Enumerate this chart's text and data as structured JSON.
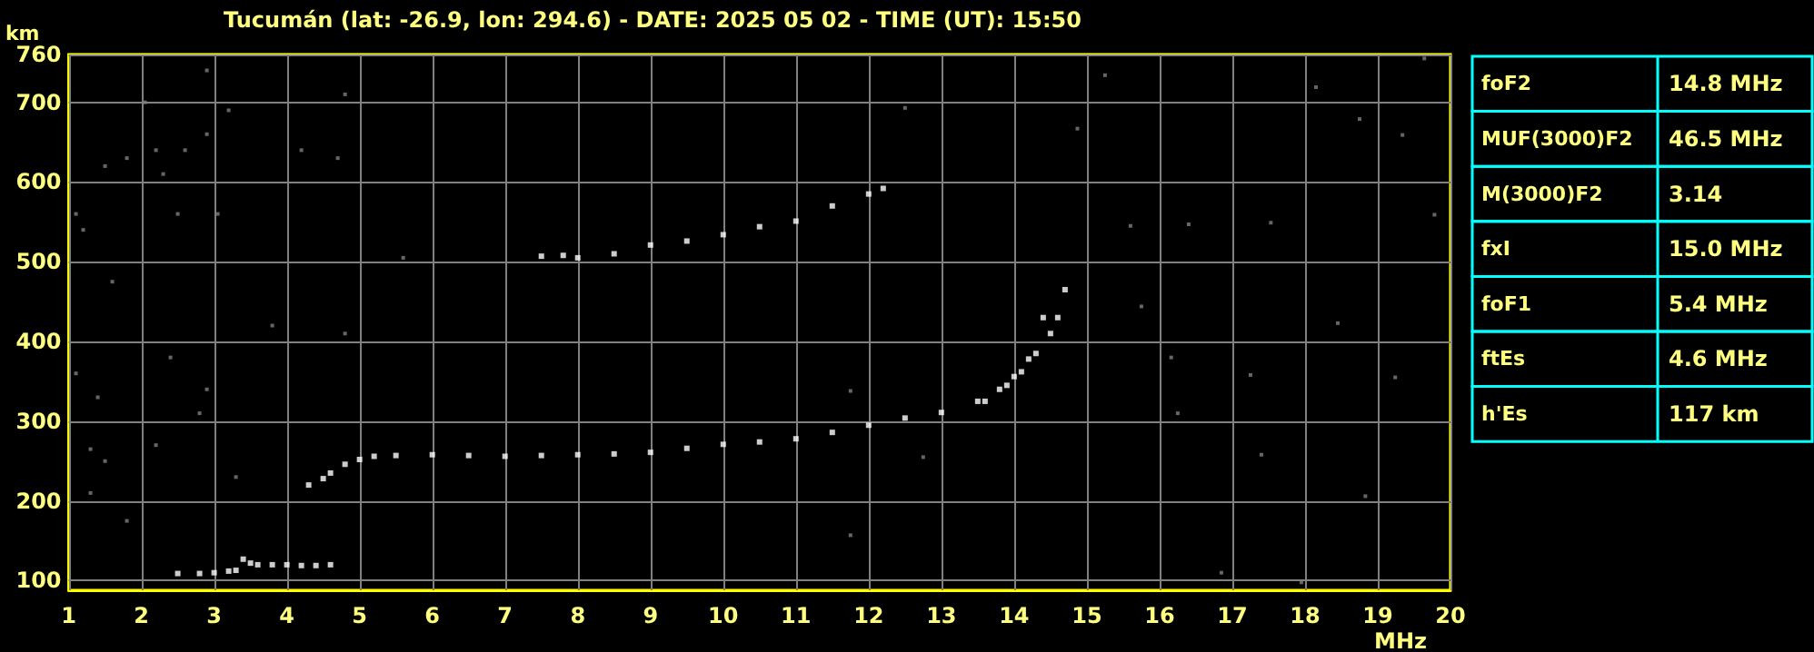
{
  "chart_data": {
    "type": "scatter",
    "title": "Tucumán (lat: -26.9, lon: 294.6) - DATE: 2025 05 02 - TIME (UT): 15:50",
    "xlabel": "MHz",
    "ylabel": "km",
    "xlim": [
      1,
      20
    ],
    "ylim": [
      88,
      760
    ],
    "xticks": [
      1,
      2,
      3,
      4,
      5,
      6,
      7,
      8,
      9,
      10,
      11,
      12,
      13,
      14,
      15,
      16,
      17,
      18,
      19,
      20
    ],
    "yticks": [
      100,
      200,
      300,
      400,
      500,
      600,
      700,
      760
    ],
    "grid": true,
    "marker": "square",
    "annotations": [
      "foF2 14.8 MHz",
      "MUF(3000)F2 46.5 MHz",
      "M(3000)F2 3.14",
      "fxI 15.0 MHz",
      "foF1 5.4 MHz",
      "ftEs 4.6 MHz",
      "h'Es 117 km"
    ],
    "series": [
      {
        "color": "#ffffff",
        "x": [
          2.5,
          2.8,
          3.0,
          3.2,
          3.3,
          3.4,
          3.5,
          3.6,
          3.8,
          4.0,
          4.2,
          4.4,
          4.6
        ],
        "values": [
          109,
          109,
          110,
          112,
          113,
          127,
          122,
          120,
          120,
          120,
          119,
          119,
          120
        ]
      },
      {
        "color": "#ffffff",
        "x": [
          4.3,
          4.5,
          4.6,
          4.8,
          5.0,
          5.2,
          5.5,
          6.0,
          6.5,
          7.0,
          7.5,
          8.0,
          8.5,
          9.0,
          9.5,
          10.0,
          10.5,
          11.0,
          11.5,
          12.0,
          12.5,
          13.0,
          13.5,
          13.8,
          14.0,
          14.2,
          14.4
        ],
        "values": [
          220,
          228,
          235,
          246,
          252,
          256,
          257,
          258,
          257,
          256,
          257,
          258,
          259,
          261,
          266,
          271,
          274,
          278,
          286,
          295,
          304,
          311,
          325,
          340,
          356,
          378,
          430
        ]
      },
      {
        "color": "#ffffff",
        "x": [
          13.6,
          13.9,
          14.1,
          14.3,
          14.5,
          14.6,
          14.7
        ],
        "values": [
          325,
          345,
          362,
          385,
          410,
          430,
          465
        ]
      },
      {
        "color": "#ffffff",
        "x": [
          7.5,
          7.8,
          8.0,
          8.5,
          9.0,
          9.5,
          10.0,
          10.5,
          11.0,
          11.5,
          12.0,
          12.2
        ],
        "values": [
          507,
          508,
          505,
          510,
          521,
          526,
          534,
          544,
          551,
          570,
          585,
          592
        ]
      },
      {
        "color": "#808080",
        "x": [
          1.1,
          1.2,
          1.5,
          1.6,
          1.8,
          2.05,
          2.2,
          2.3,
          2.5,
          2.6,
          2.9,
          2.9,
          3.05,
          3.2,
          1.4,
          1.3,
          1.5,
          1.8,
          2.2,
          2.8,
          2.9,
          3.3,
          4.2,
          4.7,
          4.8,
          4.8,
          5.6,
          2.4,
          1.1,
          1.3,
          3.8,
          14.87,
          16.16,
          17.25,
          17.53,
          18.45,
          19.24,
          19.78,
          19.64,
          19.34,
          17.95,
          16.85,
          15.6,
          16.4,
          18.75,
          18.83,
          16.25,
          17.4,
          15.25,
          15.75,
          18.15,
          12.75,
          11.75,
          12.5,
          11.75
        ],
        "values": [
          560,
          540,
          620,
          475,
          630,
          700,
          640,
          610,
          560,
          640,
          740,
          660,
          560,
          690,
          330,
          265,
          250,
          175,
          270,
          310,
          340,
          230,
          640,
          630,
          710,
          410,
          505,
          380,
          360,
          210,
          420,
          667,
          380,
          358,
          549,
          423,
          355,
          559,
          755,
          659,
          98,
          110,
          545,
          547,
          679,
          206,
          310,
          258,
          734,
          444,
          719,
          255,
          157,
          693,
          338
        ]
      }
    ]
  }
}
